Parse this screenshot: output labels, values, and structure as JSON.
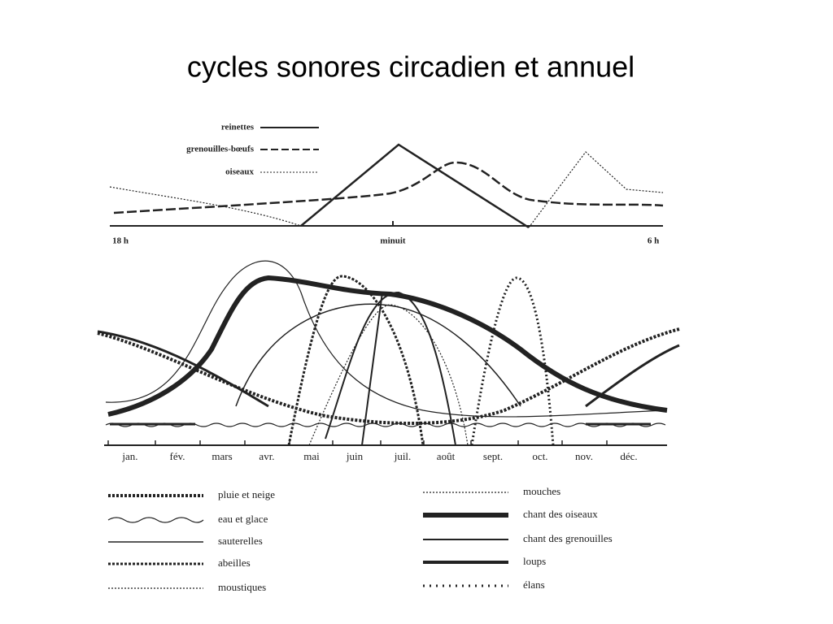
{
  "title": "cycles sonores circadien et annuel",
  "daily_chart": {
    "legend": [
      "reinettes",
      "grenouilles-bœufs",
      "oiseaux"
    ],
    "x_labels": [
      "18 h",
      "minuit",
      "6 h"
    ]
  },
  "annual_chart": {
    "months": [
      "jan.",
      "fév.",
      "mars",
      "avr.",
      "mai",
      "juin",
      "juil.",
      "août",
      "sept.",
      "oct.",
      "nov.",
      "déc."
    ],
    "legend_left": [
      "pluie et neige",
      "eau et glace",
      "sauterelles",
      "abeilles",
      "moustiques"
    ],
    "legend_right": [
      "mouches",
      "chant des oiseaux",
      "chant des grenouilles",
      "loups",
      "élans"
    ]
  }
}
